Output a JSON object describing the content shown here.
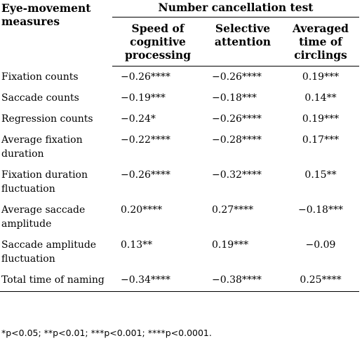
{
  "table": {
    "measures_header": "Eye-movement measures",
    "group_header": "Number cancellation test",
    "columns": [
      "Speed of cognitive processing",
      "Selective attention",
      "Averaged time of circlings"
    ],
    "rows": [
      {
        "label": "Fixation counts",
        "values": [
          "−0.26****",
          "−0.26****",
          "0.19***"
        ]
      },
      {
        "label": "Saccade counts",
        "values": [
          "−0.19***",
          "−0.18***",
          "0.14**"
        ]
      },
      {
        "label": "Regression counts",
        "values": [
          "−0.24*",
          "−0.26****",
          "0.19***"
        ]
      },
      {
        "label": "Average fixation duration",
        "values": [
          "−0.22****",
          "−0.28****",
          "0.17***"
        ]
      },
      {
        "label": "Fixation duration fluctuation",
        "values": [
          "−0.26****",
          "−0.32****",
          "0.15**"
        ]
      },
      {
        "label": "Average saccade amplitude",
        "values": [
          "0.20****",
          "0.27****",
          "−0.18***"
        ]
      },
      {
        "label": "Saccade amplitude fluctuation",
        "values": [
          "0.13**",
          "0.19***",
          "−0.09"
        ]
      },
      {
        "label": "Total time of naming",
        "values": [
          "−0.34****",
          "−0.38****",
          "0.25****"
        ]
      }
    ]
  },
  "footnote": "*p<0.05; **p<0.01; ***p<0.001; ****p<0.0001."
}
